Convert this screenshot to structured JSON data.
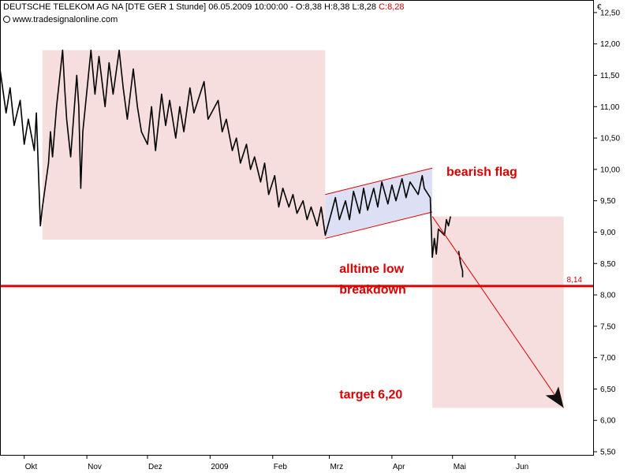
{
  "header": {
    "instrument": "DEUTSCHE TELEKOM AG NA [DTE GER  1 Stunde] 06.05.2009 10:00:00 - O:8,38 H:8,38 L:8,28",
    "close_label": "C:8,28",
    "source": "www.tradesignalonline.com"
  },
  "chart_data": {
    "type": "line",
    "currency": "€",
    "ylim": [
      5.45,
      12.7
    ],
    "y_ticks": [
      5.5,
      6.0,
      6.5,
      7.0,
      7.5,
      8.0,
      8.5,
      9.0,
      9.5,
      10.0,
      10.5,
      11.0,
      11.5,
      12.0,
      12.5
    ],
    "y_tick_labels": [
      "5,50",
      "6,00",
      "6,50",
      "7,00",
      "7,50",
      "8,00",
      "8,50",
      "9,00",
      "9,50",
      "10,00",
      "10,50",
      "11,00",
      "11,50",
      "12,00",
      "12,50"
    ],
    "x_range": [
      "2008-09-19",
      "2009-07-10"
    ],
    "x_ticks": [
      {
        "date": "2008-10-01",
        "label": "Okt"
      },
      {
        "date": "2008-11-01",
        "label": "Nov"
      },
      {
        "date": "2008-12-01",
        "label": "Dez"
      },
      {
        "date": "2009-01-01",
        "label": "2009"
      },
      {
        "date": "2009-02-01",
        "label": "Feb"
      },
      {
        "date": "2009-03-01",
        "label": "Mrz"
      },
      {
        "date": "2009-04-01",
        "label": "Apr"
      },
      {
        "date": "2009-05-01",
        "label": "Mai"
      },
      {
        "date": "2009-06-01",
        "label": "Jun"
      }
    ],
    "series": [
      {
        "color": "#000000",
        "points": [
          [
            "2008-09-19",
            11.6
          ],
          [
            "2008-09-22",
            10.9
          ],
          [
            "2008-09-24",
            11.3
          ],
          [
            "2008-09-26",
            10.7
          ],
          [
            "2008-09-29",
            11.1
          ],
          [
            "2008-10-01",
            10.4
          ],
          [
            "2008-10-03",
            10.8
          ],
          [
            "2008-10-06",
            10.3
          ],
          [
            "2008-10-07",
            10.9
          ],
          [
            "2008-10-09",
            9.1
          ],
          [
            "2008-10-10",
            9.4
          ],
          [
            "2008-10-13",
            10.1
          ],
          [
            "2008-10-14",
            10.6
          ],
          [
            "2008-10-15",
            10.2
          ],
          [
            "2008-10-17",
            11.0
          ],
          [
            "2008-10-20",
            11.9
          ],
          [
            "2008-10-21",
            11.3
          ],
          [
            "2008-10-22",
            10.8
          ],
          [
            "2008-10-24",
            10.2
          ],
          [
            "2008-10-27",
            11.5
          ],
          [
            "2008-10-28",
            11.0
          ],
          [
            "2008-10-29",
            9.7
          ],
          [
            "2008-10-30",
            10.6
          ],
          [
            "2008-11-03",
            11.9
          ],
          [
            "2008-11-05",
            11.2
          ],
          [
            "2008-11-07",
            11.8
          ],
          [
            "2008-11-10",
            11.0
          ],
          [
            "2008-11-12",
            11.7
          ],
          [
            "2008-11-14",
            11.2
          ],
          [
            "2008-11-17",
            11.9
          ],
          [
            "2008-11-19",
            11.3
          ],
          [
            "2008-11-21",
            10.8
          ],
          [
            "2008-11-24",
            11.6
          ],
          [
            "2008-11-26",
            11.0
          ],
          [
            "2008-11-28",
            10.6
          ],
          [
            "2008-12-01",
            10.4
          ],
          [
            "2008-12-03",
            11.0
          ],
          [
            "2008-12-05",
            10.3
          ],
          [
            "2008-12-08",
            11.2
          ],
          [
            "2008-12-10",
            10.7
          ],
          [
            "2008-12-12",
            11.1
          ],
          [
            "2008-12-15",
            10.5
          ],
          [
            "2008-12-17",
            11.0
          ],
          [
            "2008-12-19",
            10.6
          ],
          [
            "2008-12-22",
            11.3
          ],
          [
            "2008-12-24",
            10.9
          ],
          [
            "2008-12-29",
            11.4
          ],
          [
            "2008-12-31",
            10.8
          ],
          [
            "2009-01-05",
            11.1
          ],
          [
            "2009-01-07",
            10.6
          ],
          [
            "2009-01-09",
            10.8
          ],
          [
            "2009-01-12",
            10.3
          ],
          [
            "2009-01-14",
            10.5
          ],
          [
            "2009-01-16",
            10.1
          ],
          [
            "2009-01-19",
            10.4
          ],
          [
            "2009-01-21",
            10.0
          ],
          [
            "2009-01-23",
            10.2
          ],
          [
            "2009-01-26",
            9.8
          ],
          [
            "2009-01-28",
            10.1
          ],
          [
            "2009-01-30",
            9.6
          ],
          [
            "2009-02-02",
            9.9
          ],
          [
            "2009-02-04",
            9.4
          ],
          [
            "2009-02-06",
            9.7
          ],
          [
            "2009-02-09",
            9.4
          ],
          [
            "2009-02-11",
            9.6
          ],
          [
            "2009-02-13",
            9.3
          ],
          [
            "2009-02-16",
            9.5
          ],
          [
            "2009-02-18",
            9.2
          ],
          [
            "2009-02-20",
            9.4
          ],
          [
            "2009-02-23",
            9.1
          ],
          [
            "2009-02-25",
            9.4
          ],
          [
            "2009-02-27",
            8.95
          ],
          [
            "2009-03-02",
            9.3
          ],
          [
            "2009-03-04",
            9.55
          ],
          [
            "2009-03-06",
            9.2
          ],
          [
            "2009-03-09",
            9.5
          ],
          [
            "2009-03-11",
            9.2
          ],
          [
            "2009-03-13",
            9.65
          ],
          [
            "2009-03-16",
            9.3
          ],
          [
            "2009-03-18",
            9.7
          ],
          [
            "2009-03-20",
            9.35
          ],
          [
            "2009-03-23",
            9.7
          ],
          [
            "2009-03-25",
            9.4
          ],
          [
            "2009-03-27",
            9.8
          ],
          [
            "2009-03-30",
            9.45
          ],
          [
            "2009-04-01",
            9.75
          ],
          [
            "2009-04-03",
            9.5
          ],
          [
            "2009-04-06",
            9.85
          ],
          [
            "2009-04-08",
            9.55
          ],
          [
            "2009-04-10",
            9.8
          ],
          [
            "2009-04-14",
            9.6
          ],
          [
            "2009-04-16",
            9.9
          ],
          [
            "2009-04-17",
            9.7
          ],
          [
            "2009-04-20",
            9.55
          ],
          [
            "2009-04-21",
            8.6
          ],
          [
            "2009-04-22",
            8.9
          ],
          [
            "2009-04-23",
            8.65
          ],
          [
            "2009-04-24",
            9.05
          ],
          [
            "2009-04-27",
            8.95
          ],
          [
            "2009-04-28",
            9.2
          ],
          [
            "2009-04-29",
            9.1
          ],
          [
            "2009-04-30",
            9.25
          ]
        ]
      },
      {
        "color": "#000000",
        "points": [
          [
            "2009-05-04",
            8.7
          ],
          [
            "2009-05-05",
            8.5
          ],
          [
            "2009-05-06",
            8.38
          ],
          [
            "2009-05-06",
            8.28
          ]
        ]
      }
    ],
    "zones": [
      {
        "color": "#f7dede",
        "x0": "2008-10-10",
        "x1": "2009-02-27",
        "y0": 8.88,
        "y1": 11.9
      },
      {
        "color": "#f7dede",
        "x0": "2009-04-21",
        "x1": "2009-06-25",
        "y0": 6.2,
        "y1": 9.25
      }
    ],
    "flag_channel": {
      "fill": "#dde0f5",
      "stroke": "#e00000",
      "upper": [
        [
          "2009-02-27",
          9.6
        ],
        [
          "2009-04-21",
          10.02
        ]
      ],
      "lower": [
        [
          "2009-02-27",
          8.9
        ],
        [
          "2009-04-21",
          9.32
        ]
      ]
    },
    "support_line": {
      "value": 8.14,
      "label": "8,14",
      "color": "#e00000"
    },
    "target_arrow": {
      "from": [
        "2009-04-21",
        9.25
      ],
      "to": [
        "2009-06-25",
        6.2
      ],
      "color": "#e00000"
    },
    "annotations": [
      {
        "text": "bearish flag",
        "date": "2009-04-28",
        "value": 9.9
      },
      {
        "text": "alltime low",
        "date": "2009-03-06",
        "value": 8.35
      },
      {
        "text": "breakdown",
        "date": "2009-03-06",
        "value": 8.02
      },
      {
        "text": "target 6,20",
        "date": "2009-03-06",
        "value": 6.35
      }
    ]
  }
}
